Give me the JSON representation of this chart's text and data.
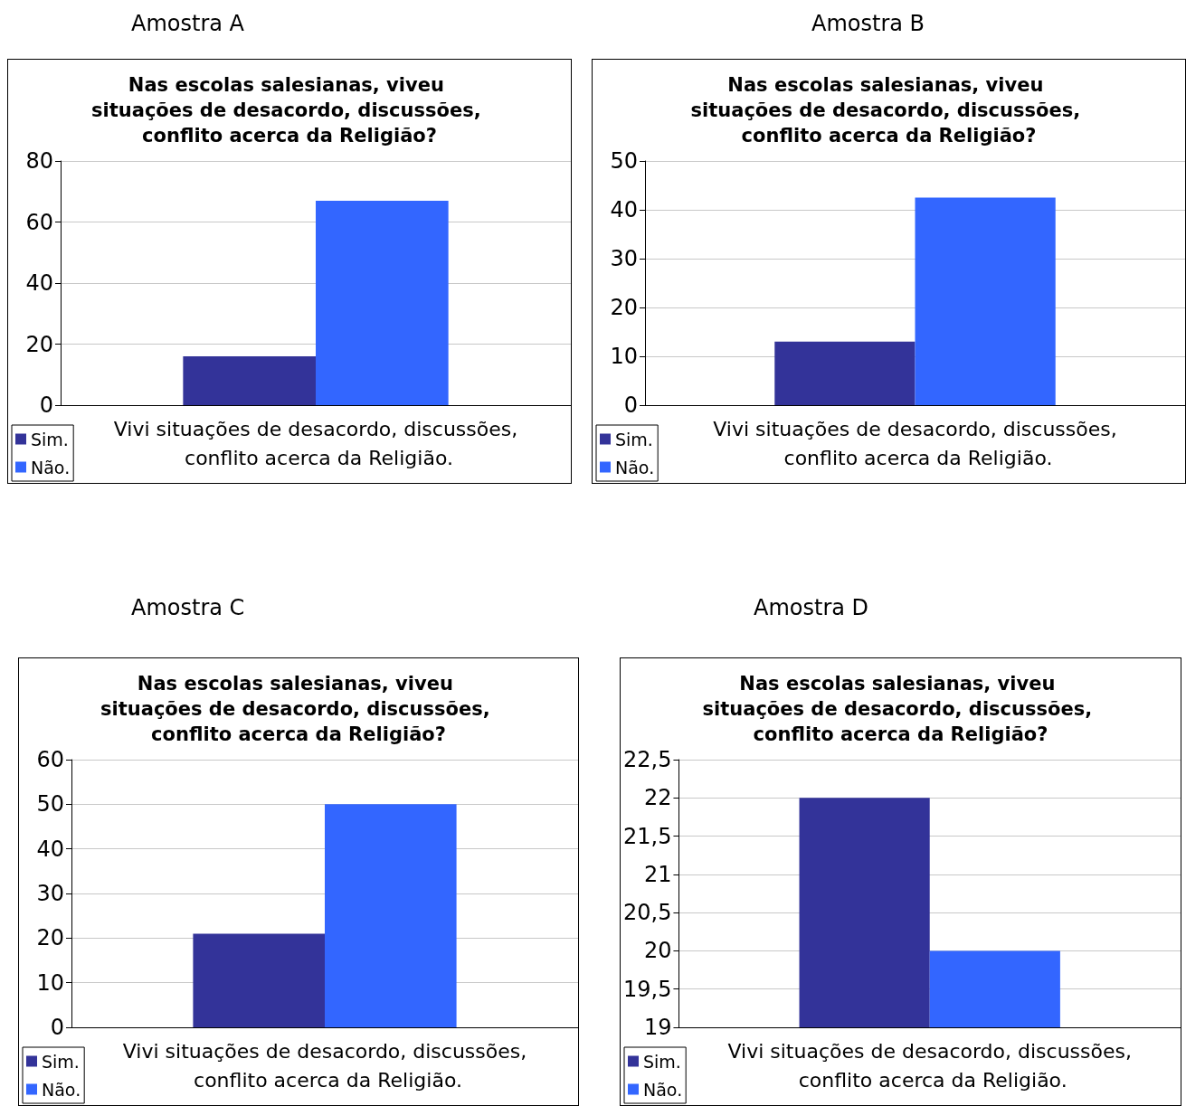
{
  "chart_data": [
    {
      "type": "bar",
      "title": "Amostra A",
      "subtitle": "Nas escolas salesianas, viveu situações de desacordo, discussões, conflito acerca da Religião?",
      "categories": [
        "Vivi situações de desacordo, discussões, conflito acerca da Religião."
      ],
      "series": [
        {
          "name": "Sim.",
          "color": "#333399",
          "values": [
            16
          ]
        },
        {
          "name": "Não.",
          "color": "#3366ff",
          "values": [
            67
          ]
        }
      ],
      "ylim": [
        0,
        80
      ],
      "yticks": [
        0,
        20,
        40,
        60,
        80
      ],
      "grid": "y",
      "legend": "bottom left"
    },
    {
      "type": "bar",
      "title": "Amostra B",
      "subtitle": "Nas escolas salesianas, viveu situações de desacordo, discussões, conflito acerca da Religião?",
      "categories": [
        "Vivi situações de desacordo, discussões, conflito acerca da Religião."
      ],
      "series": [
        {
          "name": "Sim.",
          "color": "#333399",
          "values": [
            13
          ]
        },
        {
          "name": "Não.",
          "color": "#3366ff",
          "values": [
            42.5
          ]
        }
      ],
      "ylim": [
        0,
        50
      ],
      "yticks": [
        0,
        10,
        20,
        30,
        40,
        50
      ],
      "grid": "y",
      "legend": "bottom left"
    },
    {
      "type": "bar",
      "title": "Amostra C",
      "subtitle": "Nas escolas salesianas, viveu situações de desacordo, discussões, conflito acerca da Religião?",
      "categories": [
        "Vivi situações de desacordo, discussões, conflito acerca da Religião."
      ],
      "series": [
        {
          "name": "Sim.",
          "color": "#333399",
          "values": [
            21
          ]
        },
        {
          "name": "Não.",
          "color": "#3366ff",
          "values": [
            50
          ]
        }
      ],
      "ylim": [
        0,
        60
      ],
      "yticks": [
        0,
        10,
        20,
        30,
        40,
        50,
        60
      ],
      "grid": "y",
      "legend": "bottom left"
    },
    {
      "type": "bar",
      "title": "Amostra D",
      "subtitle": "Nas escolas salesianas, viveu situações de desacordo, discussões, conflito acerca da Religião?",
      "categories": [
        "Vivi situações de desacordo, discussões, conflito acerca da Religião."
      ],
      "series": [
        {
          "name": "Sim.",
          "color": "#333399",
          "values": [
            22
          ]
        },
        {
          "name": "Não.",
          "color": "#3366ff",
          "values": [
            20
          ]
        }
      ],
      "ylim": [
        19,
        22.5
      ],
      "yticks": [
        19,
        {
          "value": 19.5,
          "label": "19,5"
        },
        20,
        {
          "value": 20.5,
          "label": "20,5"
        },
        21,
        {
          "value": 21.5,
          "label": "21,5"
        },
        22,
        {
          "value": 22.5,
          "label": "22,5"
        }
      ],
      "grid": "y",
      "legend": "bottom left"
    }
  ]
}
